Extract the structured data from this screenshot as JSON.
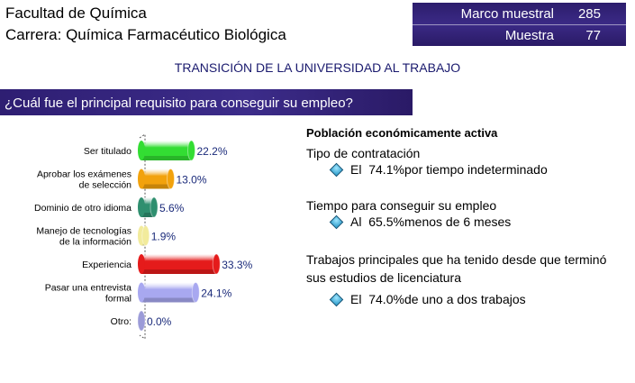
{
  "header": {
    "line1": "Facultad de Química",
    "line2": "Carrera: Química Farmacéutico Biológica",
    "sample": {
      "frame_label": "Marco muestral",
      "frame_value": "285",
      "sample_label": "Muestra",
      "sample_value": "77"
    }
  },
  "main_title": "TRANSICIÓN DE LA UNIVERSIDAD AL TRABAJO",
  "question": "¿Cuál fue el principal requisito para conseguir su empleo?",
  "chart_data": {
    "type": "bar",
    "orientation": "horizontal",
    "categories": [
      [
        "Ser titulado"
      ],
      [
        "Aprobar los exámenes",
        "de selección"
      ],
      [
        "Dominio de otro idioma"
      ],
      [
        "Manejo de tecnologías",
        "de la información"
      ],
      [
        "Experiencia"
      ],
      [
        "Pasar una entrevista",
        "formal"
      ],
      [
        "Otro:"
      ]
    ],
    "values": [
      22.2,
      13.0,
      5.6,
      1.9,
      33.3,
      24.1,
      0.0
    ],
    "labels": [
      "22.2%",
      "13.0%",
      "5.6%",
      "1.9%",
      "33.3%",
      "24.1%",
      "0.0%"
    ],
    "colors": [
      "#33dd33",
      "#f2a20c",
      "#2f8f6f",
      "#f2eb9c",
      "#e51b1b",
      "#a8a8f0",
      "#9b9bd8"
    ],
    "xlim": [
      0,
      40
    ],
    "grid": false,
    "style": "3d-cylinder"
  },
  "right_panel": {
    "heading": "Población económicamente activa",
    "contract_label": "Tipo de contratación",
    "contract_item": {
      "prefix": "El",
      "value": "74.1%",
      "text": "por tiempo indeterminado",
      "icon": "diamond-bullet-icon"
    },
    "time_label": "Tiempo para conseguir su empleo",
    "time_item": {
      "prefix": "Al",
      "value": "65.5%",
      "text": "menos de 6 meses",
      "icon": "diamond-bullet-icon"
    },
    "jobs_label_1": "Trabajos principales que ha tenido desde que terminó",
    "jobs_label_2": "sus estudios de licenciatura",
    "jobs_item": {
      "prefix": "El",
      "value": "74.0%",
      "text": "de uno a dos trabajos",
      "icon": "diamond-bullet-icon"
    }
  }
}
